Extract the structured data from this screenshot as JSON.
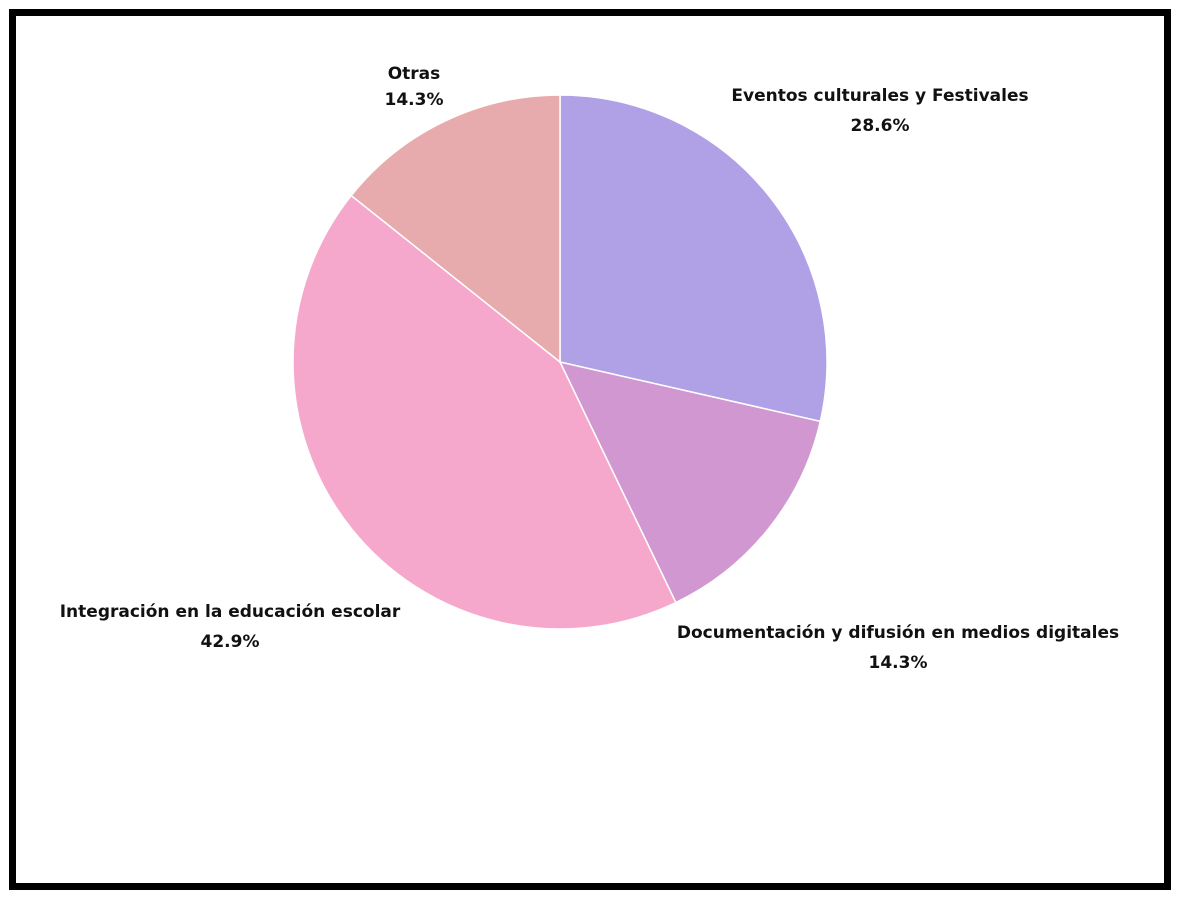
{
  "chart_data": {
    "type": "pie",
    "title": "",
    "start_angle_deg": 0,
    "direction": "clockwise",
    "slices": [
      {
        "label": "Eventos culturales y Festivales",
        "value": 28.6,
        "value_label": "28.6%",
        "color": "#B0A0E6"
      },
      {
        "label": "Documentación y difusión en medios digitales",
        "value": 14.3,
        "value_label": "14.3%",
        "color": "#D197D1"
      },
      {
        "label": "Integración en la educación escolar",
        "value": 42.9,
        "value_label": "42.9%",
        "color": "#F5A8CB"
      },
      {
        "label": "Otras",
        "value": 14.3,
        "value_label": "14.3%",
        "color": "#E8ABAD"
      }
    ]
  }
}
